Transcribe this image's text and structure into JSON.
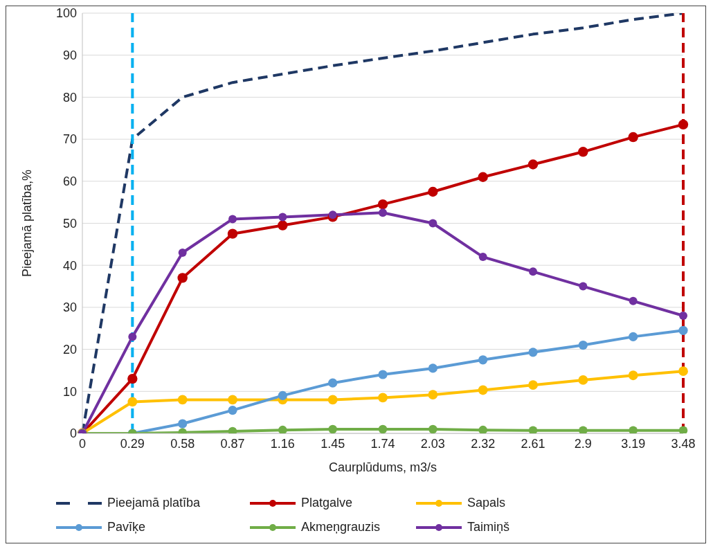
{
  "chart_data": {
    "type": "line",
    "xlabel": "Caurplūdums,  m3/s",
    "ylabel": "Pieejamā platība,%",
    "categories": [
      "0",
      "0.29",
      "0.58",
      "0.87",
      "1.16",
      "1.45",
      "1.74",
      "2.03",
      "2.32",
      "2.61",
      "2.9",
      "3.19",
      "3.48"
    ],
    "series": [
      {
        "name": "Pieejamā platība",
        "color": "#1f3864",
        "line_style": "dashed",
        "marker": "none",
        "values": [
          0,
          70,
          80,
          83.5,
          85.5,
          87.5,
          89.3,
          91,
          93,
          95,
          96.5,
          98.5,
          100
        ]
      },
      {
        "name": "Platgalve",
        "color": "#c00000",
        "values": [
          0,
          13,
          37,
          47.5,
          49.5,
          51.5,
          54.5,
          57.5,
          61,
          64,
          67,
          70.5,
          73.5
        ]
      },
      {
        "name": "Sapals",
        "color": "#ffc000",
        "values": [
          0,
          7.5,
          8,
          8,
          8,
          8,
          8.5,
          9.2,
          10.3,
          11.5,
          12.7,
          13.8,
          14.8
        ]
      },
      {
        "name": "Pavīķe",
        "color": "#5b9bd5",
        "values": [
          0,
          0,
          2.3,
          5.5,
          9,
          12,
          14,
          15.5,
          17.5,
          19.3,
          21,
          23,
          24.5
        ]
      },
      {
        "name": "Akmeņgrauzis",
        "color": "#70ad47",
        "values": [
          0,
          0,
          0.2,
          0.5,
          0.8,
          1,
          1,
          1,
          0.8,
          0.7,
          0.7,
          0.7,
          0.7
        ]
      },
      {
        "name": "Taimiņš",
        "color": "#7030a0",
        "values": [
          0,
          23,
          43,
          51,
          51.5,
          52,
          52.5,
          50,
          42,
          38.5,
          35,
          31.5,
          28
        ]
      }
    ],
    "ylim": [
      0,
      100
    ],
    "yticks": [
      0,
      10,
      20,
      30,
      40,
      50,
      60,
      70,
      80,
      90,
      100
    ],
    "ref_lines": [
      {
        "axis": "x",
        "value": "0.29",
        "color": "#00b0f0",
        "line_style": "dashed"
      },
      {
        "axis": "x",
        "value": "3.48",
        "color": "#c00000",
        "line_style": "dashed"
      }
    ],
    "grid": "y",
    "legend": "bottom",
    "marker": "circle",
    "line_style": "solid"
  }
}
